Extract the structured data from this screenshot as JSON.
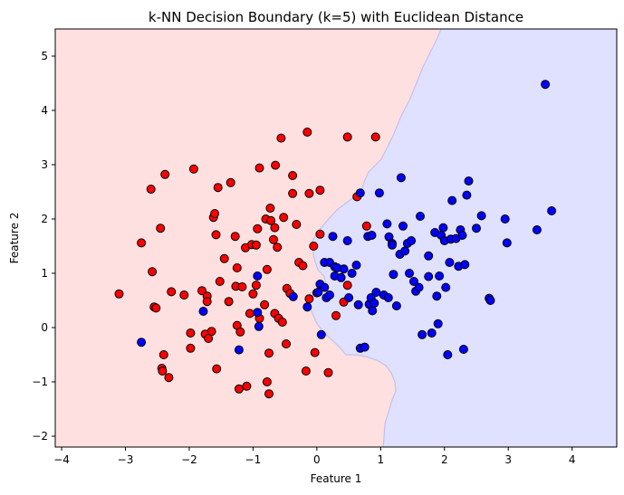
{
  "chart_data": {
    "type": "scatter",
    "title": "k-NN Decision Boundary (k=5) with Euclidean Distance",
    "xlabel": "Feature 1",
    "ylabel": "Feature 2",
    "xlim": [
      -4.1,
      4.7
    ],
    "ylim": [
      -2.2,
      5.5
    ],
    "xticks": [
      -4,
      -3,
      -2,
      -1,
      0,
      1,
      2,
      3,
      4
    ],
    "yticks": [
      -2,
      -1,
      0,
      1,
      2,
      3,
      4,
      5
    ],
    "grid": false,
    "legend": "none",
    "colors": {
      "class0_point": "#ff0000",
      "class1_point": "#0000ff",
      "class0_region": "#ffe0e0",
      "class1_region": "#e0e0ff",
      "boundary": "#c4c0ee",
      "marker_edge": "#000000"
    },
    "series": [
      {
        "color": "#ff0000",
        "points": [
          [
            -3.1,
            0.62
          ],
          [
            -2.75,
            1.56
          ],
          [
            -2.6,
            2.55
          ],
          [
            -2.58,
            1.03
          ],
          [
            -2.55,
            0.38
          ],
          [
            -2.52,
            0.36
          ],
          [
            -2.45,
            1.83
          ],
          [
            -2.4,
            -0.5
          ],
          [
            -2.43,
            -0.75
          ],
          [
            -2.42,
            -0.8
          ],
          [
            -2.38,
            2.82
          ],
          [
            -2.32,
            -0.92
          ],
          [
            -2.28,
            0.66
          ],
          [
            -2.08,
            0.6
          ],
          [
            -1.98,
            -0.1
          ],
          [
            -1.98,
            -0.38
          ],
          [
            -1.93,
            2.92
          ],
          [
            -1.8,
            0.68
          ],
          [
            -1.75,
            -0.12
          ],
          [
            -1.72,
            0.58
          ],
          [
            -1.72,
            0.48
          ],
          [
            -1.7,
            -0.2
          ],
          [
            -1.65,
            -0.07
          ],
          [
            -1.62,
            2.03
          ],
          [
            -1.6,
            2.1
          ],
          [
            -1.58,
            1.71
          ],
          [
            -1.57,
            -0.76
          ],
          [
            -1.55,
            2.58
          ],
          [
            -1.52,
            0.85
          ],
          [
            -1.45,
            1.27
          ],
          [
            -1.38,
            0.48
          ],
          [
            -1.35,
            2.67
          ],
          [
            -1.28,
            1.68
          ],
          [
            -1.27,
            0.76
          ],
          [
            -1.25,
            1.1
          ],
          [
            -1.25,
            0.04
          ],
          [
            -1.2,
            -0.08
          ],
          [
            -1.22,
            -1.13
          ],
          [
            -1.17,
            0.75
          ],
          [
            -1.12,
            1.47
          ],
          [
            -1.1,
            -1.08
          ],
          [
            -1.05,
            0.26
          ],
          [
            -1.02,
            1.53
          ],
          [
            -1.0,
            0.62
          ],
          [
            -0.95,
            1.52
          ],
          [
            -0.95,
            0.78
          ],
          [
            -0.93,
            1.82
          ],
          [
            -0.9,
            0.17
          ],
          [
            -0.9,
            2.94
          ],
          [
            -0.82,
            0.42
          ],
          [
            -0.8,
            2.0
          ],
          [
            -0.78,
            1.07
          ],
          [
            -0.78,
            -1.0
          ],
          [
            -0.75,
            -0.47
          ],
          [
            -0.75,
            -1.22
          ],
          [
            -0.73,
            2.2
          ],
          [
            -0.72,
            1.97
          ],
          [
            -0.68,
            1.62
          ],
          [
            -0.66,
            1.84
          ],
          [
            -0.66,
            0.26
          ],
          [
            -0.65,
            2.99
          ],
          [
            -0.62,
            1.48
          ],
          [
            -0.6,
            0.17
          ],
          [
            -0.56,
            3.49
          ],
          [
            -0.54,
            0.1
          ],
          [
            -0.52,
            2.03
          ],
          [
            -0.48,
            -0.3
          ],
          [
            -0.47,
            0.72
          ],
          [
            -0.42,
            0.63
          ],
          [
            -0.38,
            2.8
          ],
          [
            -0.38,
            2.47
          ],
          [
            -0.32,
            1.9
          ],
          [
            -0.28,
            1.2
          ],
          [
            -0.22,
            1.14
          ],
          [
            -0.17,
            -0.8
          ],
          [
            -0.15,
            3.6
          ],
          [
            -0.12,
            2.47
          ],
          [
            -0.12,
            0.53
          ],
          [
            -0.05,
            1.5
          ],
          [
            -0.03,
            -0.46
          ],
          [
            0.0,
            0.64
          ],
          [
            0.05,
            1.72
          ],
          [
            0.05,
            2.53
          ],
          [
            0.18,
            -0.83
          ],
          [
            0.3,
            0.22
          ],
          [
            0.42,
            0.47
          ],
          [
            0.48,
            0.78
          ],
          [
            0.48,
            3.51
          ],
          [
            0.63,
            2.41
          ],
          [
            0.78,
            1.87
          ],
          [
            0.92,
            3.51
          ]
        ]
      },
      {
        "color": "#0000ff",
        "points": [
          [
            -2.75,
            -0.27
          ],
          [
            -1.78,
            0.3
          ],
          [
            -1.22,
            -0.41
          ],
          [
            -0.93,
            0.95
          ],
          [
            -0.93,
            0.28
          ],
          [
            -0.91,
            0.02
          ],
          [
            -0.37,
            0.57
          ],
          [
            -0.15,
            0.38
          ],
          [
            0.02,
            0.65
          ],
          [
            0.05,
            0.8
          ],
          [
            0.07,
            -0.13
          ],
          [
            0.12,
            1.2
          ],
          [
            0.12,
            0.74
          ],
          [
            0.15,
            0.55
          ],
          [
            0.2,
            0.6
          ],
          [
            0.2,
            1.2
          ],
          [
            0.25,
            1.68
          ],
          [
            0.28,
            1.12
          ],
          [
            0.28,
            0.95
          ],
          [
            0.32,
            1.1
          ],
          [
            0.38,
            0.92
          ],
          [
            0.42,
            1.08
          ],
          [
            0.48,
            1.6
          ],
          [
            0.5,
            0.55
          ],
          [
            0.55,
            1.0
          ],
          [
            0.62,
            1.15
          ],
          [
            0.65,
            0.42
          ],
          [
            0.68,
            -0.38
          ],
          [
            0.68,
            2.48
          ],
          [
            0.75,
            -0.36
          ],
          [
            0.8,
            1.68
          ],
          [
            0.82,
            0.43
          ],
          [
            0.85,
            0.55
          ],
          [
            0.86,
            1.7
          ],
          [
            0.87,
            0.31
          ],
          [
            0.9,
            0.45
          ],
          [
            0.93,
            0.65
          ],
          [
            0.98,
            2.48
          ],
          [
            1.05,
            0.6
          ],
          [
            1.1,
            1.91
          ],
          [
            1.12,
            0.55
          ],
          [
            1.13,
            1.67
          ],
          [
            1.18,
            1.55
          ],
          [
            1.18,
            1.52
          ],
          [
            1.2,
            0.98
          ],
          [
            1.25,
            0.4
          ],
          [
            1.3,
            1.35
          ],
          [
            1.32,
            2.76
          ],
          [
            1.35,
            1.87
          ],
          [
            1.38,
            1.41
          ],
          [
            1.42,
            1.55
          ],
          [
            1.45,
            1.0
          ],
          [
            1.48,
            1.6
          ],
          [
            1.52,
            0.85
          ],
          [
            1.55,
            0.67
          ],
          [
            1.6,
            0.74
          ],
          [
            1.62,
            2.05
          ],
          [
            1.65,
            -0.13
          ],
          [
            1.75,
            1.32
          ],
          [
            1.75,
            0.94
          ],
          [
            1.8,
            -0.1
          ],
          [
            1.85,
            1.75
          ],
          [
            1.88,
            0.58
          ],
          [
            1.9,
            0.07
          ],
          [
            1.92,
            0.95
          ],
          [
            1.95,
            1.7
          ],
          [
            1.98,
            1.84
          ],
          [
            2.0,
            1.6
          ],
          [
            2.02,
            0.74
          ],
          [
            2.05,
            -0.5
          ],
          [
            2.08,
            1.2
          ],
          [
            2.1,
            1.63
          ],
          [
            2.12,
            2.34
          ],
          [
            2.18,
            1.64
          ],
          [
            2.22,
            1.13
          ],
          [
            2.25,
            1.8
          ],
          [
            2.28,
            1.7
          ],
          [
            2.3,
            -0.4
          ],
          [
            2.32,
            1.16
          ],
          [
            2.35,
            2.44
          ],
          [
            2.38,
            2.7
          ],
          [
            2.5,
            1.83
          ],
          [
            2.58,
            2.06
          ],
          [
            2.7,
            0.54
          ],
          [
            2.72,
            0.5
          ],
          [
            2.95,
            2.0
          ],
          [
            2.98,
            1.56
          ],
          [
            3.45,
            1.8
          ],
          [
            3.58,
            4.48
          ],
          [
            3.68,
            2.15
          ]
        ]
      }
    ]
  }
}
